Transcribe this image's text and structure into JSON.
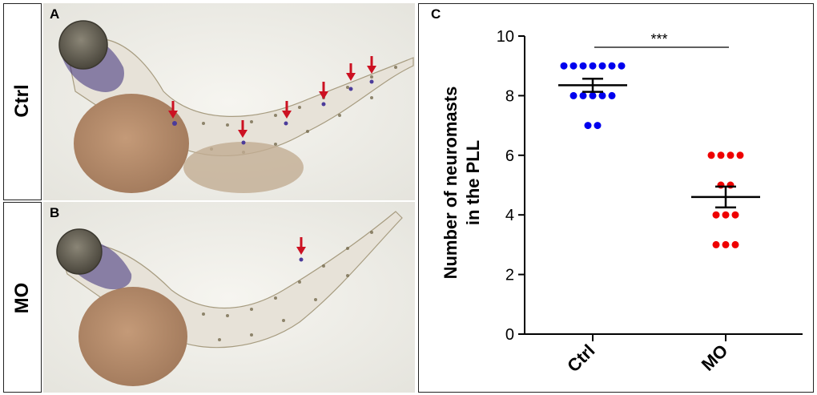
{
  "panels": {
    "a": {
      "letter": "A",
      "row_label": "Ctrl"
    },
    "b": {
      "letter": "B",
      "row_label": "MO"
    },
    "c": {
      "letter": "C"
    }
  },
  "colors": {
    "ctrl_points": "#0000ee",
    "mo_points": "#ee0000",
    "arrow": "#cc1122",
    "photo_background": "#f0efe9",
    "yolk": "#b08a6c",
    "stain": "#3a2c7a"
  },
  "icons": {
    "arrow": "red-arrow-down-icon"
  },
  "chart_data": {
    "type": "scatter",
    "title": "",
    "xlabel": "",
    "ylabel": "Number of neuromasts in the PLL",
    "ylabel_lines": [
      "Number of neuromasts",
      "in the PLL"
    ],
    "categories": [
      "Ctrl",
      "MO"
    ],
    "ylim": [
      0,
      10
    ],
    "yticks": [
      0,
      2,
      4,
      6,
      8,
      10
    ],
    "grid": false,
    "series": [
      {
        "category": "Ctrl",
        "values": [
          9,
          9,
          9,
          9,
          9,
          9,
          9,
          8,
          8,
          8,
          8,
          8,
          7,
          7
        ],
        "mean": 8.35,
        "sem": 0.22
      },
      {
        "category": "MO",
        "values": [
          6,
          6,
          6,
          6,
          5,
          5,
          4,
          4,
          4,
          3,
          3,
          3
        ],
        "mean": 4.6,
        "sem": 0.35
      }
    ],
    "annotations": [
      {
        "text": "***",
        "between": [
          "Ctrl",
          "MO"
        ]
      }
    ]
  }
}
